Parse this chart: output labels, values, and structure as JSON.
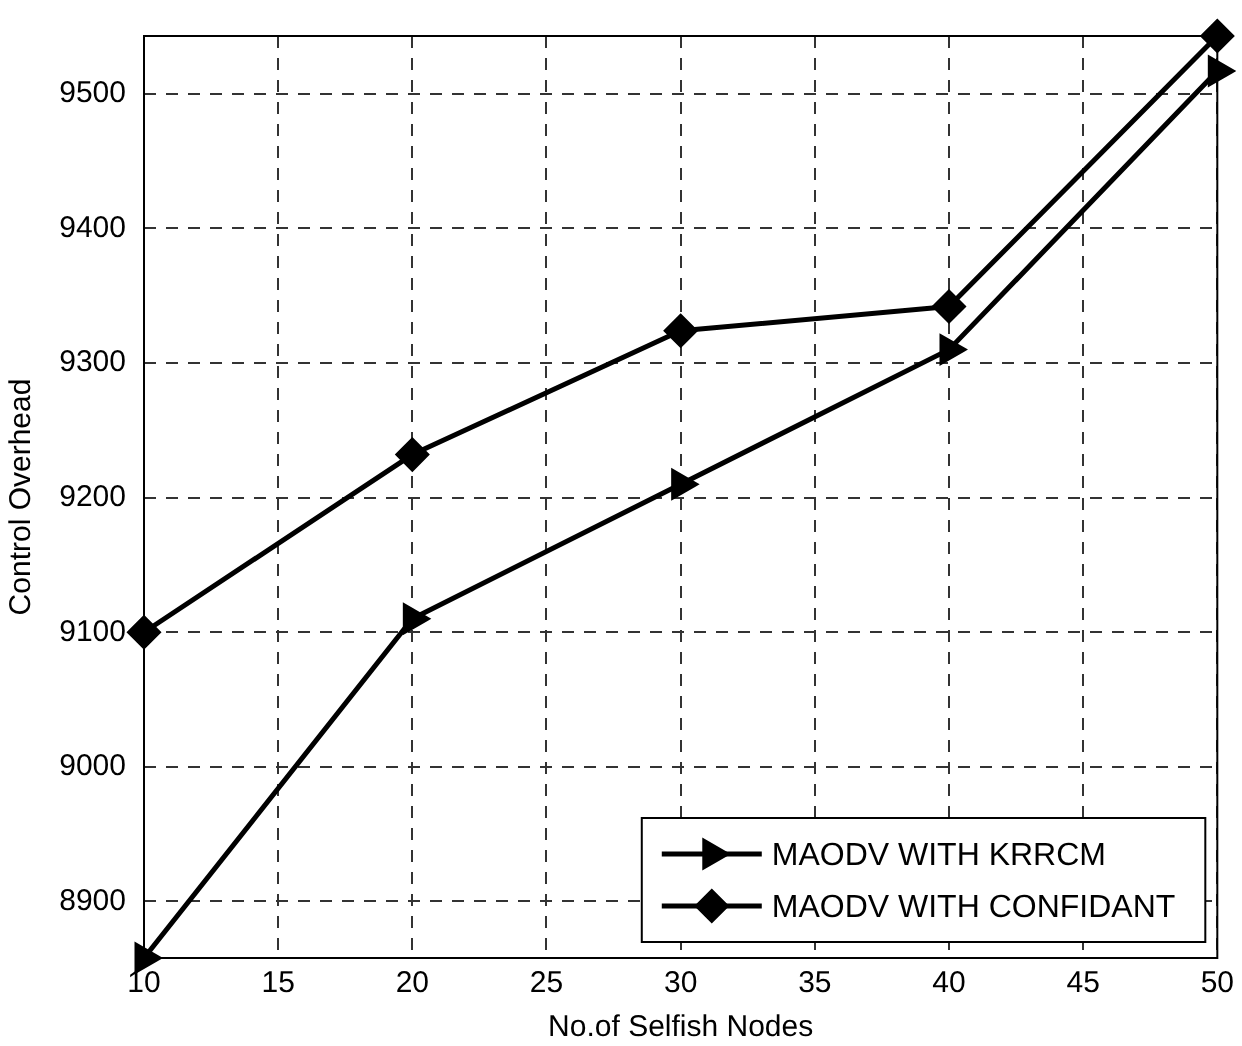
{
  "chart_data": {
    "type": "line",
    "xlabel": "No.of Selfish Nodes",
    "ylabel": "Control Overhead",
    "x": [
      10,
      20,
      30,
      40,
      50
    ],
    "series": [
      {
        "name": "MAODV WITH KRRCM",
        "color": "#000000",
        "marker": "triangle",
        "values": [
          8858,
          9110,
          9210,
          9310,
          9517
        ]
      },
      {
        "name": "MAODV WITH CONFIDANT",
        "color": "#000000",
        "marker": "diamond",
        "values": [
          9100,
          9232,
          9324,
          9342,
          9543
        ]
      }
    ],
    "xlim": [
      10,
      50
    ],
    "xticks": [
      10,
      15,
      20,
      25,
      30,
      35,
      40,
      45,
      50
    ],
    "ylim": [
      8858,
      9543
    ],
    "yticks": [
      8900,
      9000,
      9100,
      9200,
      9300,
      9400,
      9500
    ],
    "grid": true,
    "legend": "bottom right",
    "line_style": "solid"
  }
}
